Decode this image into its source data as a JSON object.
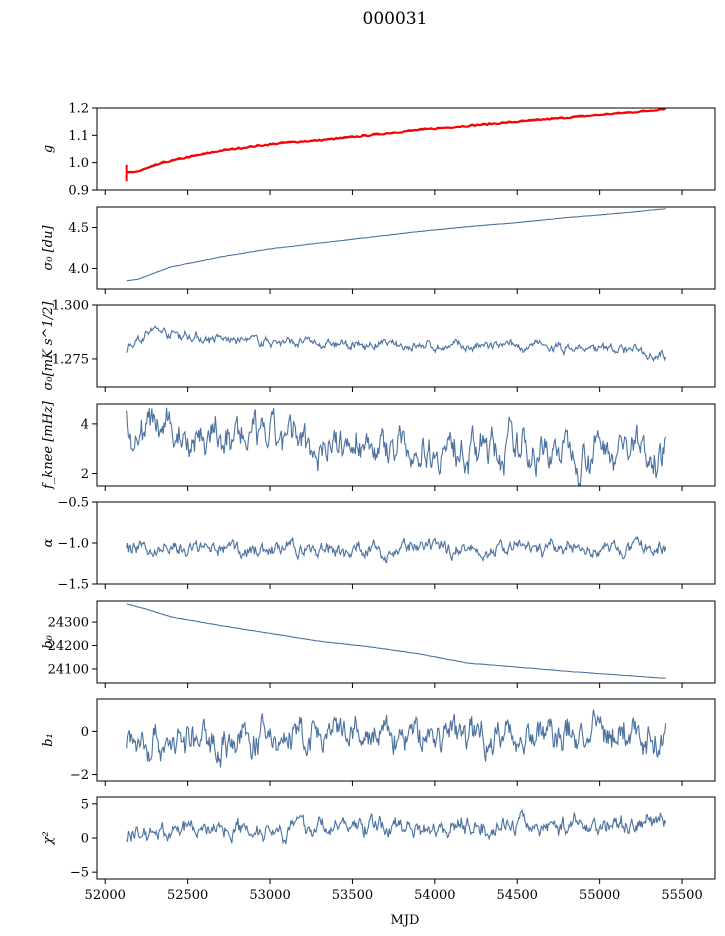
{
  "figure_title": "000031",
  "chart_data": [
    {
      "type": "line",
      "ylabel": "g",
      "ylim": [
        0.9,
        1.2
      ],
      "yticks": [
        0.9,
        1.0,
        1.1,
        1.2
      ],
      "yticklabels": [
        "0.9",
        "1.0",
        "1.1",
        "1.2"
      ],
      "color": "#4c72a0",
      "overlay_color": "#ff0000",
      "series": [
        {
          "x": [
            52130,
            52200,
            52350,
            52500,
            52700,
            52900,
            53100,
            53300,
            53500,
            53700,
            53900,
            54100,
            54300,
            54500,
            54700,
            54900,
            55100,
            55300,
            55400
          ],
          "y": [
            0.962,
            0.966,
            0.998,
            1.018,
            1.042,
            1.058,
            1.072,
            1.08,
            1.092,
            1.105,
            1.118,
            1.128,
            1.138,
            1.148,
            1.158,
            1.168,
            1.178,
            1.188,
            1.196
          ]
        }
      ]
    },
    {
      "type": "line",
      "ylabel": "σ₀ [du]",
      "ylim": [
        3.75,
        4.75
      ],
      "yticks": [
        4.0,
        4.5
      ],
      "yticklabels": [
        "4.0",
        "4.5"
      ],
      "color": "#4c72a0",
      "series": [
        {
          "x": [
            52130,
            52200,
            52400,
            52700,
            53000,
            53300,
            53600,
            53900,
            54200,
            54500,
            54800,
            55100,
            55400
          ],
          "y": [
            3.85,
            3.87,
            4.02,
            4.14,
            4.24,
            4.31,
            4.38,
            4.45,
            4.51,
            4.56,
            4.62,
            4.67,
            4.73
          ]
        }
      ]
    },
    {
      "type": "line",
      "ylabel": "σ₀[mK s^1/2]",
      "ylim": [
        1.262,
        1.3
      ],
      "yticks": [
        1.275,
        1.3
      ],
      "yticklabels": [
        "1.275",
        "1.300"
      ],
      "color": "#4c72a0",
      "noise": 0.0015,
      "series": [
        {
          "x": [
            52130,
            52200,
            52300,
            52450,
            52600,
            52800,
            53000,
            53200,
            53400,
            53600,
            53800,
            54000,
            54200,
            54400,
            54600,
            54800,
            55000,
            55200,
            55400
          ],
          "y": [
            1.2795,
            1.285,
            1.2885,
            1.2865,
            1.2845,
            1.2835,
            1.2832,
            1.2825,
            1.2815,
            1.2812,
            1.2815,
            1.2808,
            1.2805,
            1.2805,
            1.2808,
            1.2798,
            1.2795,
            1.2795,
            1.277
          ]
        }
      ]
    },
    {
      "type": "line",
      "ylabel": "f_knee [mHz]",
      "ylim": [
        1.5,
        4.8
      ],
      "yticks": [
        2,
        4
      ],
      "yticklabels": [
        "2",
        "4"
      ],
      "color": "#4c72a0",
      "noise": 0.5,
      "series": [
        {
          "x": [
            52130,
            52400,
            52800,
            53200,
            53600,
            54000,
            54400,
            54800,
            55200,
            55400
          ],
          "y": [
            3.9,
            3.7,
            3.4,
            3.25,
            3.15,
            3.05,
            3.0,
            3.0,
            3.05,
            3.0
          ]
        }
      ]
    },
    {
      "type": "line",
      "ylabel": "α",
      "ylim": [
        -1.5,
        -0.5
      ],
      "yticks": [
        -1.5,
        -1.0,
        -0.5
      ],
      "yticklabels": [
        "−1.5",
        "−1.0",
        "−0.5"
      ],
      "color": "#4c72a0",
      "noise": 0.06,
      "series": [
        {
          "x": [
            52130,
            53000,
            54000,
            55000,
            55400
          ],
          "y": [
            -1.08,
            -1.08,
            -1.08,
            -1.08,
            -1.08
          ]
        }
      ]
    },
    {
      "type": "line",
      "ylabel": "b₀",
      "ylim": [
        24040,
        24390
      ],
      "yticks": [
        24100,
        24200,
        24300
      ],
      "yticklabels": [
        "24100",
        "24200",
        "24300"
      ],
      "color": "#4c72a0",
      "series": [
        {
          "x": [
            52130,
            52250,
            52400,
            52700,
            53000,
            53300,
            53600,
            53900,
            54200,
            54500,
            54800,
            55100,
            55400
          ],
          "y": [
            24378,
            24355,
            24322,
            24285,
            24252,
            24218,
            24195,
            24165,
            24125,
            24108,
            24090,
            24075,
            24060
          ]
        }
      ]
    },
    {
      "type": "line",
      "ylabel": "b₁",
      "ylim": [
        -2.3,
        1.5
      ],
      "yticks": [
        -2,
        0
      ],
      "yticklabels": [
        "−2",
        "0"
      ],
      "color": "#4c72a0",
      "noise": 0.55,
      "series": [
        {
          "x": [
            52130,
            52600,
            53200,
            53700,
            54200,
            54700,
            55200,
            55400
          ],
          "y": [
            -0.4,
            -0.5,
            -0.3,
            -0.3,
            -0.1,
            -0.2,
            -0.1,
            -0.4
          ]
        }
      ]
    },
    {
      "type": "line",
      "ylabel": "χ²",
      "ylim": [
        -6,
        6
      ],
      "yticks": [
        -5,
        0,
        5
      ],
      "yticklabels": [
        "−5",
        "0",
        "5"
      ],
      "color": "#4c72a0",
      "noise": 0.9,
      "series": [
        {
          "x": [
            52130,
            52600,
            53200,
            53700,
            54200,
            54700,
            55200,
            55400
          ],
          "y": [
            0.5,
            1.4,
            1.6,
            1.8,
            1.8,
            1.8,
            2.0,
            2.8
          ]
        }
      ]
    }
  ],
  "xaxis": {
    "label": "MJD",
    "xlim": [
      51950,
      55700
    ],
    "ticks": [
      52000,
      52500,
      53000,
      53500,
      54000,
      54500,
      55000,
      55500
    ],
    "ticklabels": [
      "52000",
      "52500",
      "53000",
      "53500",
      "54000",
      "54500",
      "55000",
      "55500"
    ]
  }
}
